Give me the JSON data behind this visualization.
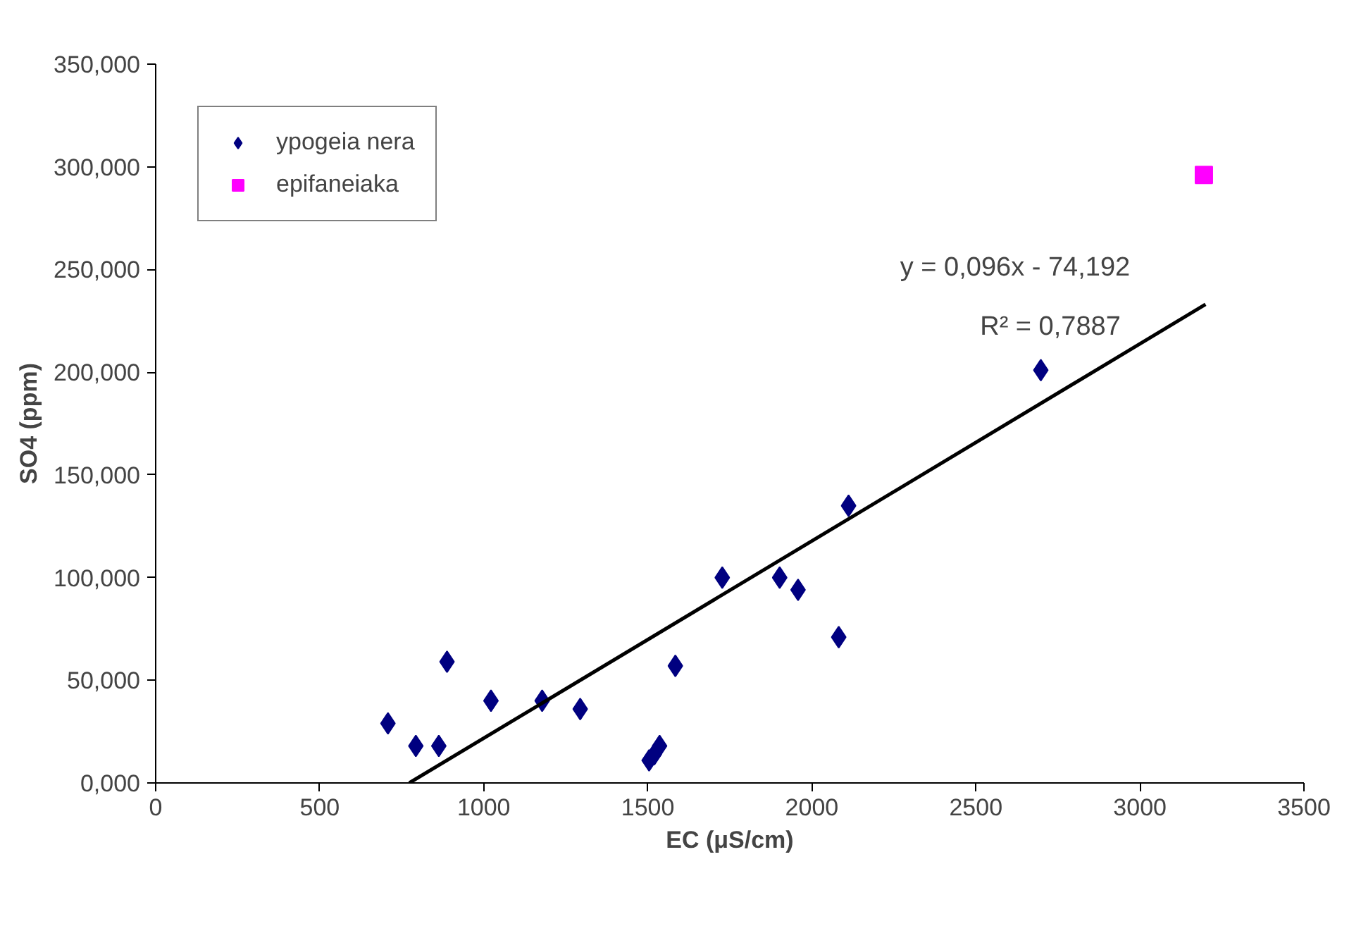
{
  "chart_data": {
    "type": "scatter",
    "xlabel": "EC (μS/cm)",
    "ylabel": "SO4 (ppm)",
    "xlim": [
      0,
      3500
    ],
    "xticks": [
      0,
      500,
      1000,
      1500,
      2000,
      2500,
      3000,
      3500
    ],
    "ylim": [
      0,
      350
    ],
    "yticks": [
      {
        "value": 0,
        "label": "0,000"
      },
      {
        "value": 50,
        "label": "50,000"
      },
      {
        "value": 100,
        "label": "100,000"
      },
      {
        "value": 150,
        "label": "150,000"
      },
      {
        "value": 200,
        "label": "200,000"
      },
      {
        "value": 250,
        "label": "250,000"
      },
      {
        "value": 300,
        "label": "300,000"
      },
      {
        "value": 350,
        "label": "350,000"
      }
    ],
    "grid": false,
    "legend": "top left",
    "series": [
      {
        "name": "ypogeia nera",
        "color": "#000080",
        "marker": "diamond",
        "x": [
          708,
          793,
          863,
          888,
          1022,
          1178,
          1294,
          1504,
          1520,
          1536,
          1584,
          1727,
          1902,
          1958,
          2082,
          2112,
          2698
        ],
        "values": [
          29,
          18,
          18,
          59,
          40,
          40,
          36,
          11,
          14,
          18,
          57,
          100,
          100,
          94,
          71,
          135,
          201
        ]
      },
      {
        "name": "epifaneiaka",
        "color": "#ff00ff",
        "marker": "square",
        "x": [
          3195
        ],
        "values": [
          296
        ]
      },
      {
        "type": "line",
        "color": "#000000",
        "line_style": "solid",
        "x": [
          773,
          3200
        ],
        "values": [
          0,
          233
        ]
      }
    ],
    "annotations": [
      "y = 0,096x - 74,192",
      "R² = 0,7887"
    ]
  }
}
